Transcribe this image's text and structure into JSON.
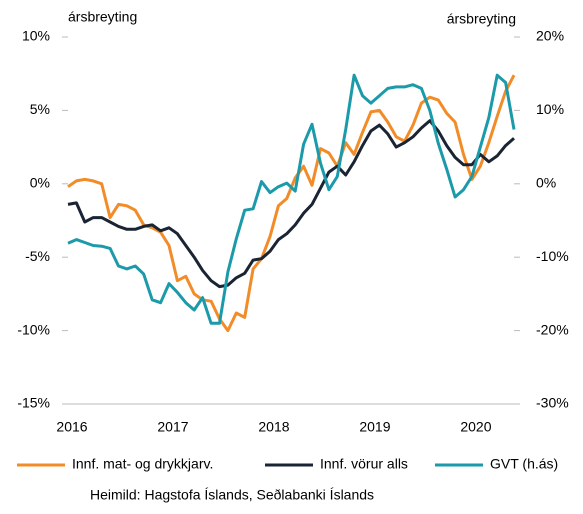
{
  "chart_data": {
    "type": "line",
    "ylabel": "ársbreyting",
    "y2label": "ársbreyting",
    "categories": [
      "2016",
      null,
      null,
      null,
      null,
      null,
      null,
      null,
      null,
      null,
      null,
      null,
      "2017",
      null,
      null,
      null,
      null,
      null,
      null,
      null,
      null,
      null,
      null,
      null,
      "2018",
      null,
      null,
      null,
      null,
      null,
      null,
      null,
      null,
      null,
      null,
      null,
      "2019",
      null,
      null,
      null,
      null,
      null,
      null,
      null,
      null,
      null,
      null,
      null,
      "2020",
      null,
      null,
      null,
      null,
      null
    ],
    "ylim": [
      -15,
      10
    ],
    "yticks": [
      {
        "value": -15,
        "label": "-15%"
      },
      {
        "value": -10,
        "label": "-10%"
      },
      {
        "value": -5,
        "label": "-5%"
      },
      {
        "value": 0,
        "label": "0%"
      },
      {
        "value": 5,
        "label": "5%"
      },
      {
        "value": 10,
        "label": "10%"
      }
    ],
    "y2lim": [
      -30,
      20
    ],
    "y2ticks": [
      {
        "value": -30,
        "label": "-30%"
      },
      {
        "value": -20,
        "label": "-20%"
      },
      {
        "value": -10,
        "label": "-10%"
      },
      {
        "value": 0,
        "label": "0%"
      },
      {
        "value": 10,
        "label": "10%"
      },
      {
        "value": 20,
        "label": "20%"
      }
    ],
    "grid": false,
    "series": [
      {
        "name": "Innf. mat- og drykkjarv.",
        "color": "#f28c28",
        "values": [
          -0.2,
          0.2,
          0.3,
          0.2,
          0.0,
          -2.3,
          -1.4,
          -1.5,
          -1.8,
          -2.8,
          -3.0,
          -3.3,
          -4.2,
          -6.6,
          -6.3,
          -7.5,
          -7.9,
          -8.0,
          -9.2,
          -10.0,
          -8.8,
          -9.1,
          -5.8,
          -5.1,
          -3.6,
          -1.5,
          -1.0,
          0.4,
          1.2,
          -0.1,
          2.4,
          2.1,
          1.2,
          2.8,
          2.0,
          3.5,
          4.9,
          5.0,
          4.2,
          3.2,
          2.9,
          4.0,
          5.5,
          5.9,
          5.7,
          4.8,
          4.2,
          2.0,
          0.3,
          1.2,
          2.8,
          4.6,
          6.3,
          7.4
        ]
      },
      {
        "name": "Innf. vörur alls",
        "color": "#1a2433",
        "values": [
          -1.4,
          -1.3,
          -2.6,
          -2.3,
          -2.3,
          -2.6,
          -2.9,
          -3.1,
          -3.1,
          -2.9,
          -2.8,
          -3.2,
          -3.0,
          -3.4,
          -4.2,
          -5.0,
          -5.9,
          -6.6,
          -7.0,
          -6.9,
          -6.4,
          -6.1,
          -5.2,
          -5.1,
          -4.6,
          -3.8,
          -3.4,
          -2.8,
          -2.0,
          -1.4,
          -0.3,
          0.8,
          1.2,
          0.6,
          1.5,
          2.6,
          3.6,
          4.0,
          3.4,
          2.5,
          2.8,
          3.2,
          3.8,
          4.3,
          3.6,
          2.6,
          1.8,
          1.3,
          1.3,
          2.0,
          1.5,
          1.9,
          2.6,
          3.1
        ]
      },
      {
        "name": "GVT (h.ás)",
        "color": "#1b9aaa",
        "axis": "y2",
        "values": [
          -8.1,
          -7.6,
          -8.0,
          -8.4,
          -8.5,
          -8.8,
          -11.2,
          -11.6,
          -11.2,
          -12.3,
          -15.8,
          -16.2,
          -13.6,
          -14.8,
          -16.2,
          -17.2,
          -15.5,
          -19.0,
          -19.0,
          -12.0,
          -7.5,
          -3.6,
          -3.4,
          0.3,
          -1.2,
          -0.4,
          0.1,
          -1.0,
          5.4,
          8.1,
          2.8,
          -0.8,
          1.0,
          7.4,
          14.8,
          12.0,
          11.0,
          12.0,
          13.0,
          13.2,
          13.2,
          13.5,
          13.0,
          10.0,
          5.5,
          2.0,
          -1.8,
          -0.8,
          1.0,
          5.0,
          9.0,
          14.8,
          13.8,
          7.4
        ]
      }
    ],
    "source": "Heimild: Hagstofa Íslands, Seðlabanki Íslands"
  }
}
